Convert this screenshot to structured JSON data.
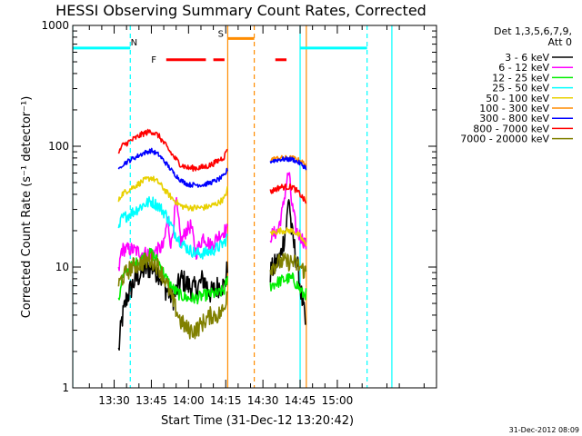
{
  "chart_data": {
    "type": "line",
    "title": "HESSI Observing Summary Count Rates, Corrected",
    "xlabel": "Start Time (31-Dec-12 13:20:42)",
    "ylabel": "Corrected Count Rate (s⁻¹ detector⁻¹)",
    "yscale": "log",
    "ylim": [
      1,
      1000
    ],
    "xlim_minutes": [
      13.3,
      160
    ],
    "yticks": [
      {
        "v": 1,
        "label": "1"
      },
      {
        "v": 10,
        "label": "10"
      },
      {
        "v": 100,
        "label": "100"
      },
      {
        "v": 1000,
        "label": "1000"
      }
    ],
    "xticks": [
      {
        "t": 30,
        "label": "13:30"
      },
      {
        "t": 45,
        "label": "13:45"
      },
      {
        "t": 60,
        "label": "14:00"
      },
      {
        "t": 75,
        "label": "14:15"
      },
      {
        "t": 90,
        "label": "14:30"
      },
      {
        "t": 105,
        "label": "14:45"
      },
      {
        "t": 120,
        "label": "15:00"
      }
    ],
    "legend_title": [
      "Det 1,3,5,6,7,9,",
      "Att 0"
    ],
    "legend_position": "right",
    "gaps": [
      [
        76,
        93
      ]
    ],
    "series": [
      {
        "name": "3 - 6 keV",
        "color": "#000000",
        "noise": 0.2,
        "points": [
          [
            31.8,
            2
          ],
          [
            33,
            3.5
          ],
          [
            35,
            5.5
          ],
          [
            38,
            7.5
          ],
          [
            42,
            9.5
          ],
          [
            45,
            10
          ],
          [
            48,
            9
          ],
          [
            51,
            6.5
          ],
          [
            54,
            5.5
          ],
          [
            57,
            8
          ],
          [
            60,
            7
          ],
          [
            63,
            6.5
          ],
          [
            66,
            8
          ],
          [
            69,
            6
          ],
          [
            72,
            7
          ],
          [
            74.5,
            7
          ],
          [
            75.8,
            10
          ],
          [
            93,
            9
          ],
          [
            97,
            12
          ],
          [
            99.5,
            22
          ],
          [
            100.5,
            40
          ],
          [
            101.5,
            20
          ],
          [
            104,
            10
          ],
          [
            106,
            5
          ],
          [
            107.5,
            3
          ]
        ]
      },
      {
        "name": "6 - 12 keV",
        "color": "#ff00ff",
        "noise": 0.12,
        "points": [
          [
            31.8,
            9
          ],
          [
            33,
            14
          ],
          [
            37,
            14
          ],
          [
            42,
            13
          ],
          [
            45,
            13
          ],
          [
            48,
            14
          ],
          [
            50,
            15
          ],
          [
            51.5,
            25
          ],
          [
            53,
            15
          ],
          [
            55,
            35
          ],
          [
            57,
            16
          ],
          [
            59,
            20
          ],
          [
            61,
            22
          ],
          [
            63,
            13
          ],
          [
            66,
            18
          ],
          [
            69,
            15
          ],
          [
            72,
            18
          ],
          [
            74.5,
            20
          ],
          [
            75.8,
            20
          ],
          [
            93,
            18
          ],
          [
            96,
            20
          ],
          [
            98,
            30
          ],
          [
            99.5,
            50
          ],
          [
            100.5,
            62
          ],
          [
            101.5,
            35
          ],
          [
            103.5,
            20
          ],
          [
            106,
            17
          ],
          [
            107.5,
            15
          ]
        ]
      },
      {
        "name": "12 - 25 keV",
        "color": "#00ee00",
        "noise": 0.1,
        "points": [
          [
            31.8,
            5
          ],
          [
            33,
            8
          ],
          [
            37,
            10
          ],
          [
            42,
            12
          ],
          [
            45,
            13
          ],
          [
            48,
            11
          ],
          [
            51,
            8
          ],
          [
            54,
            6.5
          ],
          [
            57,
            5.8
          ],
          [
            60,
            5.5
          ],
          [
            63,
            5.5
          ],
          [
            66,
            5.8
          ],
          [
            69,
            6
          ],
          [
            72,
            6
          ],
          [
            74.5,
            6.5
          ],
          [
            75.8,
            8
          ],
          [
            93,
            7
          ],
          [
            96,
            7.5
          ],
          [
            99.5,
            8
          ],
          [
            102,
            8
          ],
          [
            104,
            7
          ],
          [
            106,
            6
          ],
          [
            107.5,
            6
          ]
        ]
      },
      {
        "name": "25 - 50 keV",
        "color": "#00ffff",
        "noise": 0.1,
        "points": [
          [
            31.8,
            20
          ],
          [
            33,
            25
          ],
          [
            37,
            28
          ],
          [
            42,
            33
          ],
          [
            45,
            35
          ],
          [
            48,
            32
          ],
          [
            51,
            27
          ],
          [
            54,
            20
          ],
          [
            57,
            16
          ],
          [
            60,
            14
          ],
          [
            63,
            13
          ],
          [
            66,
            13
          ],
          [
            69,
            13.5
          ],
          [
            72,
            14.5
          ],
          [
            74.5,
            16
          ],
          [
            75.8,
            18
          ]
        ]
      },
      {
        "name": "50 - 100 keV",
        "color": "#e8d000",
        "noise": 0.05,
        "points": [
          [
            31.8,
            35
          ],
          [
            33,
            40
          ],
          [
            37,
            45
          ],
          [
            42,
            52
          ],
          [
            45,
            55
          ],
          [
            48,
            50
          ],
          [
            51,
            42
          ],
          [
            54,
            36
          ],
          [
            57,
            32
          ],
          [
            60,
            31
          ],
          [
            63,
            31
          ],
          [
            66,
            31
          ],
          [
            69,
            32
          ],
          [
            72,
            34
          ],
          [
            74.5,
            37
          ],
          [
            75.8,
            45
          ],
          [
            93,
            19
          ],
          [
            97,
            20
          ],
          [
            102,
            20
          ],
          [
            105,
            18
          ],
          [
            107.5,
            15
          ]
        ]
      },
      {
        "name": "100 - 300 keV",
        "color": "#ff8c00",
        "noise": 0.04,
        "points": [
          [
            93,
            78
          ],
          [
            97,
            80
          ],
          [
            102,
            80
          ],
          [
            105,
            76
          ],
          [
            107.5,
            70
          ]
        ]
      },
      {
        "name": "300 - 800 keV",
        "color": "#0000ff",
        "noise": 0.04,
        "points": [
          [
            31.8,
            62
          ],
          [
            33,
            70
          ],
          [
            37,
            78
          ],
          [
            42,
            88
          ],
          [
            45,
            92
          ],
          [
            48,
            85
          ],
          [
            51,
            72
          ],
          [
            54,
            60
          ],
          [
            57,
            52
          ],
          [
            60,
            48
          ],
          [
            63,
            48
          ],
          [
            66,
            48
          ],
          [
            69,
            50
          ],
          [
            72,
            53
          ],
          [
            74.5,
            57
          ],
          [
            75.8,
            65
          ],
          [
            93,
            75
          ],
          [
            97,
            78
          ],
          [
            102,
            78
          ],
          [
            105,
            72
          ],
          [
            107.5,
            66
          ]
        ]
      },
      {
        "name": "800 - 7000 keV",
        "color": "#ff0000",
        "noise": 0.05,
        "points": [
          [
            31.8,
            85
          ],
          [
            33,
            100
          ],
          [
            37,
            112
          ],
          [
            42,
            128
          ],
          [
            45,
            133
          ],
          [
            48,
            122
          ],
          [
            51,
            100
          ],
          [
            54,
            82
          ],
          [
            57,
            70
          ],
          [
            60,
            66
          ],
          [
            63,
            66
          ],
          [
            66,
            67
          ],
          [
            69,
            70
          ],
          [
            72,
            76
          ],
          [
            74.5,
            82
          ],
          [
            75.8,
            100
          ],
          [
            93,
            42
          ],
          [
            97,
            46
          ],
          [
            102,
            46
          ],
          [
            105,
            40
          ],
          [
            107.5,
            34
          ]
        ]
      },
      {
        "name": "7000 - 20000 keV",
        "color": "#808000",
        "noise": 0.15,
        "points": [
          [
            31.8,
            7
          ],
          [
            33,
            8
          ],
          [
            37,
            10
          ],
          [
            42,
            11
          ],
          [
            45,
            11.5
          ],
          [
            48,
            10
          ],
          [
            51,
            7.5
          ],
          [
            54,
            5
          ],
          [
            57,
            3.5
          ],
          [
            60,
            3
          ],
          [
            63,
            3
          ],
          [
            66,
            3.5
          ],
          [
            69,
            4
          ],
          [
            72,
            4
          ],
          [
            74.5,
            4.5
          ],
          [
            75.8,
            7
          ],
          [
            93,
            10
          ],
          [
            97,
            11
          ],
          [
            102,
            11
          ],
          [
            105,
            10
          ],
          [
            107.5,
            9
          ]
        ]
      }
    ],
    "orange_boundaries_minutes": [
      75.8,
      107.5
    ],
    "cyan_boundaries_minutes": [
      13.3,
      105,
      142
    ],
    "dashed_boundaries": [
      {
        "t": 36.5,
        "color": "#00ffff"
      },
      {
        "t": 86.5,
        "color": "#ff8c00"
      },
      {
        "t": 132,
        "color": "#00ffff"
      }
    ],
    "flag_bars": [
      {
        "label": "",
        "color": "#00ffff",
        "y": 650,
        "segments": [
          [
            13.3,
            36.5
          ],
          [
            105,
            132
          ]
        ]
      },
      {
        "label": "S",
        "color": "#ff8c00",
        "y": 780,
        "segments": [
          [
            76,
            86.5
          ]
        ]
      },
      {
        "label": "F",
        "color": "#ff0000",
        "y": 520,
        "segments": [
          [
            51,
            67
          ],
          [
            70,
            74.5
          ],
          [
            95,
            99.5
          ]
        ]
      }
    ],
    "flag_labels": [
      {
        "text": "N",
        "t": 38,
        "y": 720,
        "color": "#00ffff"
      },
      {
        "text": "S",
        "t": 73,
        "y": 850,
        "color": "#ff8c00"
      },
      {
        "text": "F",
        "t": 46,
        "y": 520,
        "color": "#ff0000"
      }
    ],
    "timestamp": "31-Dec-2012 08:09"
  }
}
